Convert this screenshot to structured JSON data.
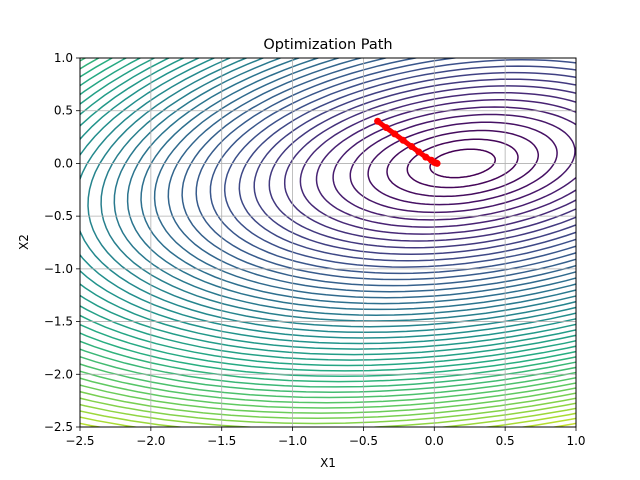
{
  "chart_data": {
    "type": "contour",
    "title": "Optimization Path",
    "xlabel": "X1",
    "ylabel": "X2",
    "xlim": [
      -2.5,
      1.0
    ],
    "ylim": [
      -2.5,
      1.0
    ],
    "xticks": [
      -2.5,
      -2.0,
      -1.5,
      -1.0,
      -0.5,
      0.0,
      0.5,
      1.0
    ],
    "yticks": [
      -2.5,
      -2.0,
      -1.5,
      -1.0,
      -0.5,
      0.0,
      0.5,
      1.0
    ],
    "xtick_labels": [
      "−2.5",
      "−2.0",
      "−1.5",
      "−1.0",
      "−0.5",
      "0.0",
      "0.5",
      "1.0"
    ],
    "ytick_labels": [
      "−2.5",
      "−2.0",
      "−1.5",
      "−1.0",
      "−0.5",
      "0.0",
      "0.5",
      "1.0"
    ],
    "grid": true,
    "colormap": "viridis",
    "contour_levels": 50,
    "minimum": [
      0.0,
      0.0
    ],
    "path": {
      "color": "#ff0000",
      "x": [
        -0.4,
        -0.34,
        -0.28,
        -0.22,
        -0.16,
        -0.11,
        -0.06,
        -0.02,
        0.0,
        0.01,
        0.02
      ],
      "y": [
        0.4,
        0.34,
        0.28,
        0.22,
        0.16,
        0.11,
        0.06,
        0.03,
        0.01,
        0.005,
        0.0
      ]
    }
  }
}
